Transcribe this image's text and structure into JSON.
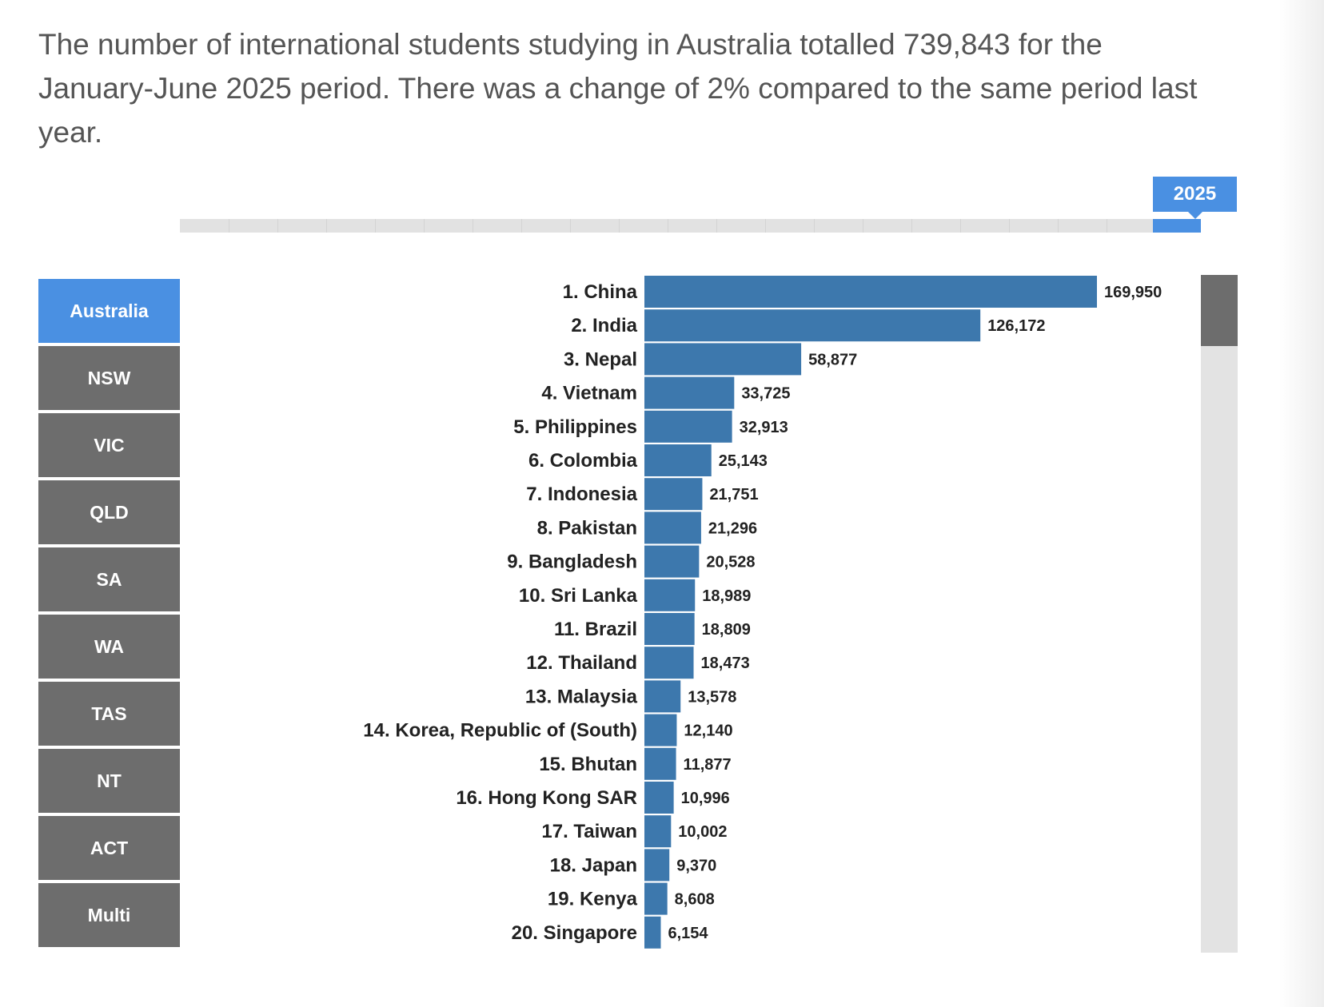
{
  "intro": "The number of international students studying in Australia totalled 739,843 for the January-June 2025 period. There was a change of 2% compared to the same period last year.",
  "timeline": {
    "selected_year": "2025",
    "accent": "#4a90e2"
  },
  "regions": [
    {
      "label": "Australia",
      "active": true
    },
    {
      "label": "NSW",
      "active": false
    },
    {
      "label": "VIC",
      "active": false
    },
    {
      "label": "QLD",
      "active": false
    },
    {
      "label": "SA",
      "active": false
    },
    {
      "label": "WA",
      "active": false
    },
    {
      "label": "TAS",
      "active": false
    },
    {
      "label": "NT",
      "active": false
    },
    {
      "label": "ACT",
      "active": false
    },
    {
      "label": "Multi",
      "active": false
    }
  ],
  "chart_data": {
    "type": "bar",
    "orientation": "horizontal",
    "bar_color": "#3d78ad",
    "categories": [
      "1. China",
      "2. India",
      "3. Nepal",
      "4. Vietnam",
      "5. Philippines",
      "6. Colombia",
      "7. Indonesia",
      "8. Pakistan",
      "9. Bangladesh",
      "10. Sri Lanka",
      "11. Brazil",
      "12. Thailand",
      "13. Malaysia",
      "14. Korea, Republic of (South)",
      "15. Bhutan",
      "16. Hong Kong SAR",
      "17. Taiwan",
      "18. Japan",
      "19. Kenya",
      "20. Singapore"
    ],
    "values": [
      169950,
      126172,
      58877,
      33725,
      32913,
      25143,
      21751,
      21296,
      20528,
      18989,
      18809,
      18473,
      13578,
      12140,
      11877,
      10996,
      10002,
      9370,
      8608,
      6154
    ],
    "value_labels": [
      "169,950",
      "126,172",
      "58,877",
      "33,725",
      "32,913",
      "25,143",
      "21,751",
      "21,296",
      "20,528",
      "18,989",
      "18,809",
      "18,473",
      "13,578",
      "12,140",
      "11,877",
      "10,996",
      "10,002",
      "9,370",
      "8,608",
      "6,154"
    ],
    "xlim": [
      0,
      169950
    ],
    "grid": false,
    "legend": "none"
  }
}
